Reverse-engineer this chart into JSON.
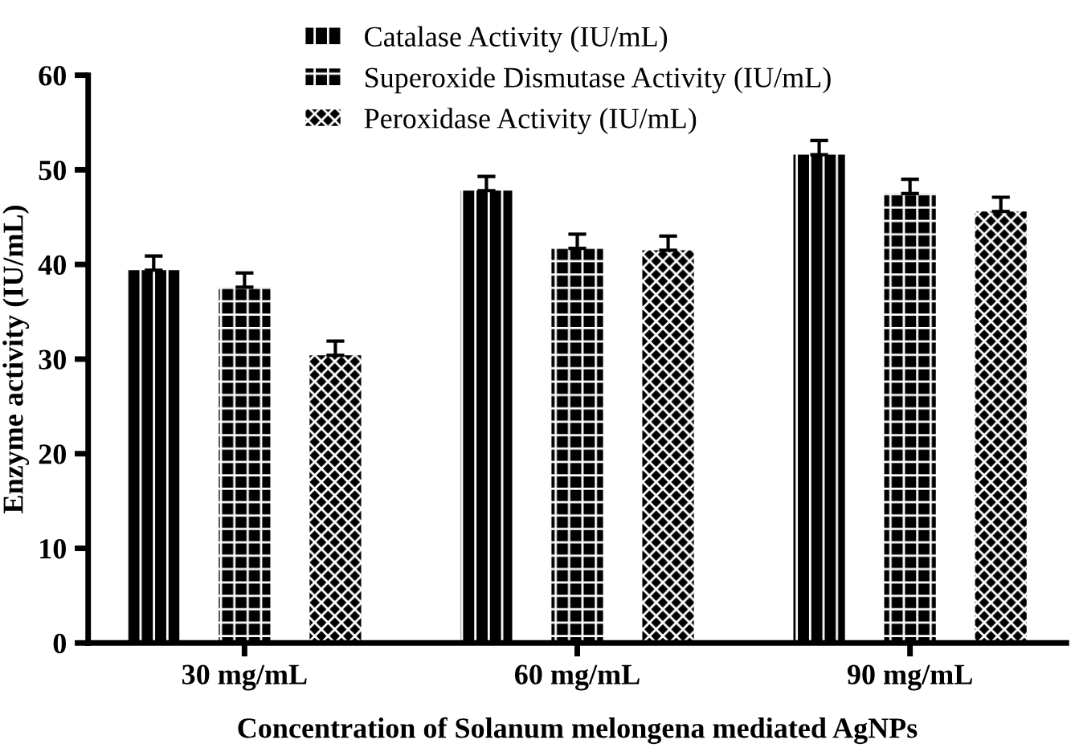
{
  "chart_data": {
    "type": "bar",
    "xlabel": "Concentration of Solanum melongena mediated AgNPs",
    "ylabel": "Enzyme activity (IU/mL)",
    "categories": [
      "30 mg/mL",
      "60 mg/mL",
      "90 mg/mL"
    ],
    "series": [
      {
        "name": "Catalase Activity (IU/mL)",
        "color": "#000000",
        "values": [
          39.4,
          47.8,
          51.6
        ],
        "errors": [
          1.5,
          1.5,
          1.5
        ]
      },
      {
        "name": "Superoxide Dismutase Activity (IU/mL)",
        "color": "#000000",
        "values": [
          37.6,
          41.7,
          47.5
        ],
        "errors": [
          1.5,
          1.5,
          1.5
        ]
      },
      {
        "name": "Peroxidase Activity (IU/mL)",
        "color": "#000000",
        "values": [
          30.4,
          41.5,
          45.6
        ],
        "errors": [
          1.5,
          1.5,
          1.5
        ]
      }
    ],
    "ylim": [
      0,
      60
    ],
    "yticks": [
      0,
      10,
      20,
      30,
      40,
      50,
      60
    ],
    "grid": false,
    "legend": "top left"
  }
}
